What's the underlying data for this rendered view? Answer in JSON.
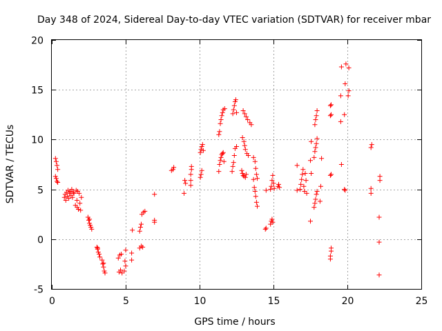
{
  "chart_data": {
    "type": "scatter",
    "title": "Day 348 of 2024, Sidereal Day-to-day VTEC variation (SDTVAR) for receiver mbar",
    "xlabel": "GPS time / hours",
    "ylabel": "SDTVAR / TECUs",
    "xlim": [
      0,
      25
    ],
    "ylim": [
      -5,
      20
    ],
    "xticks": [
      0,
      5,
      10,
      15,
      20,
      25
    ],
    "yticks": [
      -5,
      0,
      5,
      10,
      15,
      20
    ],
    "xtick_labels": [
      "0",
      "5",
      "10",
      "15",
      "20",
      "25"
    ],
    "ytick_labels": [
      "-5",
      "0",
      "5",
      "10",
      "15",
      "20"
    ],
    "grid": true,
    "marker": "plus",
    "color": "#ff0000",
    "series": [
      {
        "name": "SDTVAR",
        "points": [
          [
            0.25,
            8.1
          ],
          [
            0.3,
            7.8
          ],
          [
            0.35,
            7.4
          ],
          [
            0.4,
            7.0
          ],
          [
            0.3,
            6.1
          ],
          [
            0.35,
            5.8
          ],
          [
            0.4,
            5.7
          ],
          [
            0.25,
            6.3
          ],
          [
            0.85,
            4.2
          ],
          [
            0.9,
            4.5
          ],
          [
            0.95,
            3.9
          ],
          [
            1.0,
            4.7
          ],
          [
            1.05,
            4.3
          ],
          [
            1.1,
            4.9
          ],
          [
            1.15,
            4.1
          ],
          [
            1.2,
            4.6
          ],
          [
            1.25,
            4.8
          ],
          [
            1.3,
            4.4
          ],
          [
            1.35,
            5.0
          ],
          [
            1.4,
            4.2
          ],
          [
            1.45,
            4.7
          ],
          [
            1.5,
            4.6
          ],
          [
            1.6,
            3.4
          ],
          [
            1.7,
            3.9
          ],
          [
            1.75,
            4.8
          ],
          [
            1.8,
            3.0
          ],
          [
            1.85,
            4.6
          ],
          [
            1.9,
            3.6
          ],
          [
            1.95,
            2.9
          ],
          [
            2.0,
            4.2
          ],
          [
            1.65,
            4.9
          ],
          [
            1.72,
            3.2
          ],
          [
            2.45,
            2.2
          ],
          [
            2.5,
            1.9
          ],
          [
            2.55,
            1.6
          ],
          [
            2.6,
            1.4
          ],
          [
            2.65,
            1.2
          ],
          [
            2.7,
            1.0
          ],
          [
            2.55,
            2.0
          ],
          [
            3.05,
            -0.8
          ],
          [
            3.1,
            -1.0
          ],
          [
            3.15,
            -1.3
          ],
          [
            3.2,
            -1.5
          ],
          [
            3.25,
            -1.8
          ],
          [
            3.1,
            -0.9
          ],
          [
            3.4,
            -2.1
          ],
          [
            3.45,
            -2.5
          ],
          [
            3.5,
            -2.8
          ],
          [
            3.55,
            -3.2
          ],
          [
            3.6,
            -3.4
          ],
          [
            3.5,
            -2.4
          ],
          [
            4.5,
            -1.9
          ],
          [
            4.6,
            -1.6
          ],
          [
            4.55,
            -3.3
          ],
          [
            4.65,
            -3.1
          ],
          [
            4.75,
            -3.4
          ],
          [
            4.9,
            -3.2
          ],
          [
            5.0,
            -2.7
          ],
          [
            5.0,
            -1.1
          ],
          [
            4.95,
            -2.2
          ],
          [
            4.7,
            -1.5
          ],
          [
            5.4,
            -2.1
          ],
          [
            5.4,
            -1.4
          ],
          [
            5.45,
            0.9
          ],
          [
            5.95,
            -0.9
          ],
          [
            6.05,
            -0.7
          ],
          [
            6.15,
            -0.8
          ],
          [
            5.95,
            0.8
          ],
          [
            6.0,
            1.2
          ],
          [
            6.05,
            1.5
          ],
          [
            6.1,
            2.5
          ],
          [
            6.2,
            2.7
          ],
          [
            6.3,
            2.8
          ],
          [
            6.95,
            1.7
          ],
          [
            6.95,
            1.9
          ],
          [
            6.95,
            4.5
          ],
          [
            8.1,
            6.9
          ],
          [
            8.2,
            7.0
          ],
          [
            8.25,
            7.2
          ],
          [
            8.95,
            4.6
          ],
          [
            9.0,
            5.9
          ],
          [
            9.05,
            5.6
          ],
          [
            9.4,
            5.4
          ],
          [
            9.4,
            5.9
          ],
          [
            9.4,
            6.5
          ],
          [
            9.45,
            7.0
          ],
          [
            9.45,
            7.3
          ],
          [
            10.05,
            6.2
          ],
          [
            10.1,
            6.5
          ],
          [
            10.15,
            6.9
          ],
          [
            10.05,
            8.7
          ],
          [
            10.1,
            9.0
          ],
          [
            10.15,
            9.3
          ],
          [
            10.2,
            9.5
          ],
          [
            10.25,
            8.9
          ],
          [
            11.3,
            6.8
          ],
          [
            11.35,
            7.5
          ],
          [
            11.4,
            7.9
          ],
          [
            11.45,
            8.2
          ],
          [
            11.5,
            8.5
          ],
          [
            11.55,
            8.6
          ],
          [
            11.6,
            8.7
          ],
          [
            11.65,
            7.8
          ],
          [
            11.3,
            10.5
          ],
          [
            11.35,
            10.8
          ],
          [
            11.4,
            11.6
          ],
          [
            11.45,
            12.0
          ],
          [
            11.5,
            12.4
          ],
          [
            11.55,
            12.7
          ],
          [
            11.6,
            13.0
          ],
          [
            11.7,
            13.1
          ],
          [
            12.2,
            6.8
          ],
          [
            12.25,
            7.3
          ],
          [
            12.3,
            7.7
          ],
          [
            12.35,
            8.4
          ],
          [
            12.4,
            9.1
          ],
          [
            12.5,
            9.3
          ],
          [
            12.25,
            12.6
          ],
          [
            12.3,
            13.0
          ],
          [
            12.35,
            13.4
          ],
          [
            12.4,
            13.8
          ],
          [
            12.45,
            14.0
          ],
          [
            12.5,
            12.7
          ],
          [
            12.85,
            6.9
          ],
          [
            12.9,
            6.6
          ],
          [
            12.95,
            6.4
          ],
          [
            13.0,
            6.3
          ],
          [
            13.1,
            6.2
          ],
          [
            13.15,
            6.5
          ],
          [
            12.9,
            10.2
          ],
          [
            13.0,
            9.8
          ],
          [
            13.05,
            9.4
          ],
          [
            13.1,
            9.0
          ],
          [
            13.2,
            8.6
          ],
          [
            13.3,
            8.4
          ],
          [
            12.95,
            12.9
          ],
          [
            13.05,
            12.6
          ],
          [
            13.15,
            12.3
          ],
          [
            13.25,
            12.0
          ],
          [
            13.4,
            11.7
          ],
          [
            13.5,
            11.5
          ],
          [
            13.65,
            6.0
          ],
          [
            13.7,
            5.2
          ],
          [
            13.75,
            4.8
          ],
          [
            13.8,
            4.3
          ],
          [
            13.85,
            3.7
          ],
          [
            13.9,
            3.3
          ],
          [
            13.65,
            8.2
          ],
          [
            13.75,
            7.8
          ],
          [
            13.8,
            7.1
          ],
          [
            13.85,
            6.5
          ],
          [
            13.9,
            6.1
          ],
          [
            14.45,
            1.0
          ],
          [
            14.5,
            1.1
          ],
          [
            14.5,
            4.9
          ],
          [
            14.8,
            1.5
          ],
          [
            14.85,
            1.8
          ],
          [
            14.9,
            2.0
          ],
          [
            14.95,
            1.7
          ],
          [
            14.8,
            5.0
          ],
          [
            14.85,
            5.3
          ],
          [
            14.9,
            5.9
          ],
          [
            14.95,
            6.4
          ],
          [
            15.0,
            5.6
          ],
          [
            15.05,
            5.1
          ],
          [
            15.3,
            5.3
          ],
          [
            15.35,
            5.5
          ],
          [
            15.4,
            5.2
          ],
          [
            16.6,
            4.9
          ],
          [
            16.6,
            7.4
          ],
          [
            16.8,
            5.0
          ],
          [
            16.85,
            5.5
          ],
          [
            16.9,
            6.0
          ],
          [
            16.95,
            6.5
          ],
          [
            17.0,
            7.0
          ],
          [
            17.05,
            5.3
          ],
          [
            17.1,
            4.8
          ],
          [
            17.15,
            6.6
          ],
          [
            17.2,
            5.9
          ],
          [
            17.25,
            4.6
          ],
          [
            17.5,
            1.8
          ],
          [
            17.55,
            6.6
          ],
          [
            17.5,
            7.9
          ],
          [
            17.55,
            9.8
          ],
          [
            17.75,
            3.2
          ],
          [
            17.8,
            3.6
          ],
          [
            17.85,
            4.0
          ],
          [
            17.9,
            4.5
          ],
          [
            17.95,
            4.8
          ],
          [
            17.75,
            8.2
          ],
          [
            17.8,
            8.8
          ],
          [
            17.85,
            9.2
          ],
          [
            17.9,
            9.6
          ],
          [
            17.95,
            10.1
          ],
          [
            17.8,
            11.5
          ],
          [
            17.85,
            12.0
          ],
          [
            17.9,
            12.4
          ],
          [
            17.95,
            12.9
          ],
          [
            18.15,
            3.8
          ],
          [
            18.2,
            5.3
          ],
          [
            18.25,
            8.1
          ],
          [
            18.85,
            -2.0
          ],
          [
            18.85,
            -1.7
          ],
          [
            18.9,
            -1.2
          ],
          [
            18.9,
            -0.9
          ],
          [
            18.85,
            6.4
          ],
          [
            18.9,
            6.5
          ],
          [
            18.85,
            12.4
          ],
          [
            18.9,
            12.5
          ],
          [
            18.85,
            13.4
          ],
          [
            18.9,
            13.5
          ],
          [
            19.55,
            11.8
          ],
          [
            19.55,
            14.4
          ],
          [
            19.6,
            7.5
          ],
          [
            19.6,
            17.3
          ],
          [
            19.8,
            5.0
          ],
          [
            19.85,
            4.9
          ],
          [
            19.8,
            12.5
          ],
          [
            19.85,
            15.6
          ],
          [
            19.9,
            17.6
          ],
          [
            20.05,
            14.4
          ],
          [
            20.1,
            14.9
          ],
          [
            20.1,
            17.2
          ],
          [
            21.6,
            4.6
          ],
          [
            21.6,
            5.1
          ],
          [
            21.6,
            9.2
          ],
          [
            21.65,
            9.5
          ],
          [
            22.15,
            -3.6
          ],
          [
            22.15,
            -0.3
          ],
          [
            22.15,
            2.2
          ],
          [
            22.2,
            5.9
          ],
          [
            22.2,
            6.3
          ]
        ]
      }
    ]
  }
}
